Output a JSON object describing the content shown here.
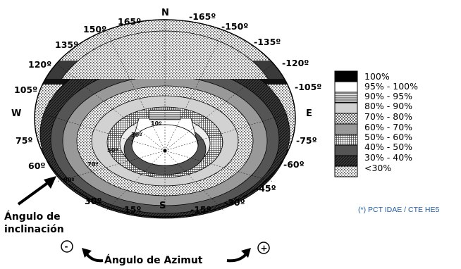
{
  "cardinals": {
    "north": "N",
    "south": "S",
    "east": "E",
    "west": "W"
  },
  "azimuth_labels": [
    {
      "text": "165º"
    },
    {
      "text": "150º"
    },
    {
      "text": "135º"
    },
    {
      "text": "120º"
    },
    {
      "text": "105º"
    },
    {
      "text": "75º"
    },
    {
      "text": "60º"
    },
    {
      "text": "30º"
    },
    {
      "text": "15º"
    },
    {
      "text": "-165º"
    },
    {
      "text": "-150º"
    },
    {
      "text": "-135º"
    },
    {
      "text": "-120º"
    },
    {
      "text": "-105º"
    },
    {
      "text": "-75º"
    },
    {
      "text": "-60º"
    },
    {
      "text": "-45º"
    },
    {
      "text": "-30º"
    },
    {
      "text": "-15º"
    }
  ],
  "tilt_labels": [
    "10º",
    "30º",
    "50º",
    "70º",
    "90º"
  ],
  "legend": [
    {
      "label": "100%",
      "pattern": "solid-black"
    },
    {
      "label": "95% - 100%",
      "pattern": "white"
    },
    {
      "label": "90% - 95%",
      "pattern": "horizontal-lines"
    },
    {
      "label": "80% - 90%",
      "pattern": "light-grey"
    },
    {
      "label": "70% - 80%",
      "pattern": "checker"
    },
    {
      "label": "60% - 70%",
      "pattern": "medium-grey"
    },
    {
      "label": "50% - 60%",
      "pattern": "fine-grid"
    },
    {
      "label": "40% - 50%",
      "pattern": "dark-grey"
    },
    {
      "label": "30% - 40%",
      "pattern": "dark-hatched"
    },
    {
      "label": "<30%",
      "pattern": "dots"
    }
  ],
  "tilt_caption": {
    "line1": "Ángulo de",
    "line2": "inclinación"
  },
  "azimut_caption": "Ángulo de Azimut",
  "signs": {
    "minus": "-",
    "plus": "+"
  },
  "source_note": "(*) PCT IDAE / CTE HE5",
  "colors": {
    "source_note": "#1f5fa8"
  }
}
